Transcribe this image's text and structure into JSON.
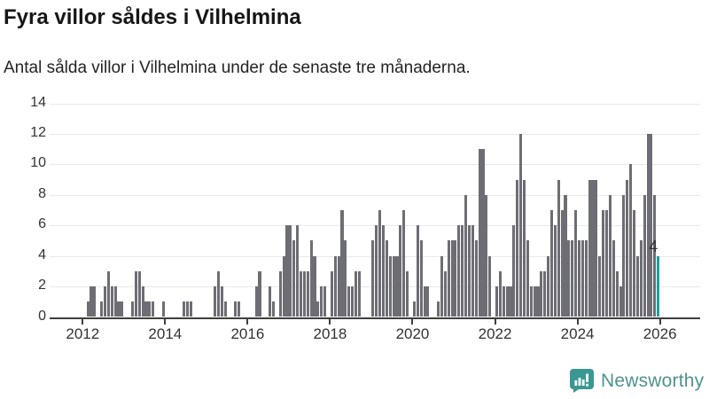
{
  "title": "Fyra villor såldes i Vilhelmina",
  "subtitle": "Antal sålda villor i Vilhelmina under de senaste tre månaderna.",
  "branding": {
    "name": "Newsworthy",
    "icon": "bar-chart-speech-bubble-icon"
  },
  "colors": {
    "bar": "#6d6d74",
    "highlight": "#1aa29e",
    "grid": "#e9e9e9",
    "axis": "#3f3f3f",
    "title_text": "#161616",
    "subtitle_text": "#232323",
    "tick_text": "#333333",
    "brand_text": "#4e938f",
    "brand_icon_bg": "#3a9792"
  },
  "chart_data": {
    "type": "bar",
    "title": "Fyra villor såldes i Vilhelmina",
    "subtitle": "Antal sålda villor i Vilhelmina under de senaste tre månaderna.",
    "ylabel": "",
    "xlabel": "",
    "ylim": [
      0,
      14
    ],
    "yticks": [
      0,
      2,
      4,
      6,
      8,
      10,
      12,
      14
    ],
    "xtick_labels": [
      "2012",
      "2014",
      "2016",
      "2018",
      "2020",
      "2022",
      "2024",
      "2026"
    ],
    "grid": "horizontal",
    "start_month": "2012-01",
    "years": [
      {
        "year": 2012,
        "monthly": [
          0,
          1,
          2,
          2,
          0,
          1,
          2,
          3,
          2,
          2,
          1,
          1
        ]
      },
      {
        "year": 2013,
        "monthly": [
          0,
          0,
          1,
          3,
          3,
          2,
          1,
          1,
          1,
          0,
          0,
          1
        ]
      },
      {
        "year": 2014,
        "monthly": [
          0,
          0,
          0,
          0,
          0,
          1,
          1,
          1,
          0,
          0,
          0,
          0
        ]
      },
      {
        "year": 2015,
        "monthly": [
          0,
          0,
          2,
          3,
          2,
          1,
          0,
          0,
          1,
          1,
          0,
          0
        ]
      },
      {
        "year": 2016,
        "monthly": [
          0,
          0,
          2,
          3,
          0,
          0,
          2,
          1,
          0,
          3,
          4,
          6
        ]
      },
      {
        "year": 2017,
        "monthly": [
          6,
          5,
          6,
          3,
          3,
          3,
          5,
          4,
          1,
          2,
          2,
          0
        ]
      },
      {
        "year": 2018,
        "monthly": [
          3,
          4,
          4,
          7,
          5,
          2,
          2,
          3,
          3,
          0,
          0,
          0
        ]
      },
      {
        "year": 2019,
        "monthly": [
          5,
          6,
          7,
          6,
          5,
          4,
          4,
          4,
          6,
          7,
          3,
          0
        ]
      },
      {
        "year": 2020,
        "monthly": [
          1,
          6,
          5,
          2,
          2,
          0,
          0,
          1,
          4,
          3,
          5,
          5
        ]
      },
      {
        "year": 2021,
        "monthly": [
          5,
          6,
          6,
          8,
          6,
          6,
          5,
          11,
          11,
          8,
          4,
          0
        ]
      },
      {
        "year": 2022,
        "monthly": [
          2,
          3,
          2,
          2,
          2,
          6,
          9,
          12,
          9,
          5,
          2,
          2
        ]
      },
      {
        "year": 2023,
        "monthly": [
          2,
          3,
          3,
          4,
          7,
          6,
          9,
          7,
          8,
          5,
          5,
          7
        ]
      },
      {
        "year": 2024,
        "monthly": [
          5,
          5,
          5,
          9,
          9,
          9,
          4,
          7,
          7,
          8,
          5,
          3
        ]
      },
      {
        "year": 2025,
        "monthly": [
          2,
          8,
          9,
          10,
          7,
          4,
          5,
          8,
          12,
          12,
          8,
          4
        ]
      }
    ],
    "highlight": {
      "month": "2025-12",
      "value": 4,
      "label": "4"
    },
    "legend": "none"
  }
}
